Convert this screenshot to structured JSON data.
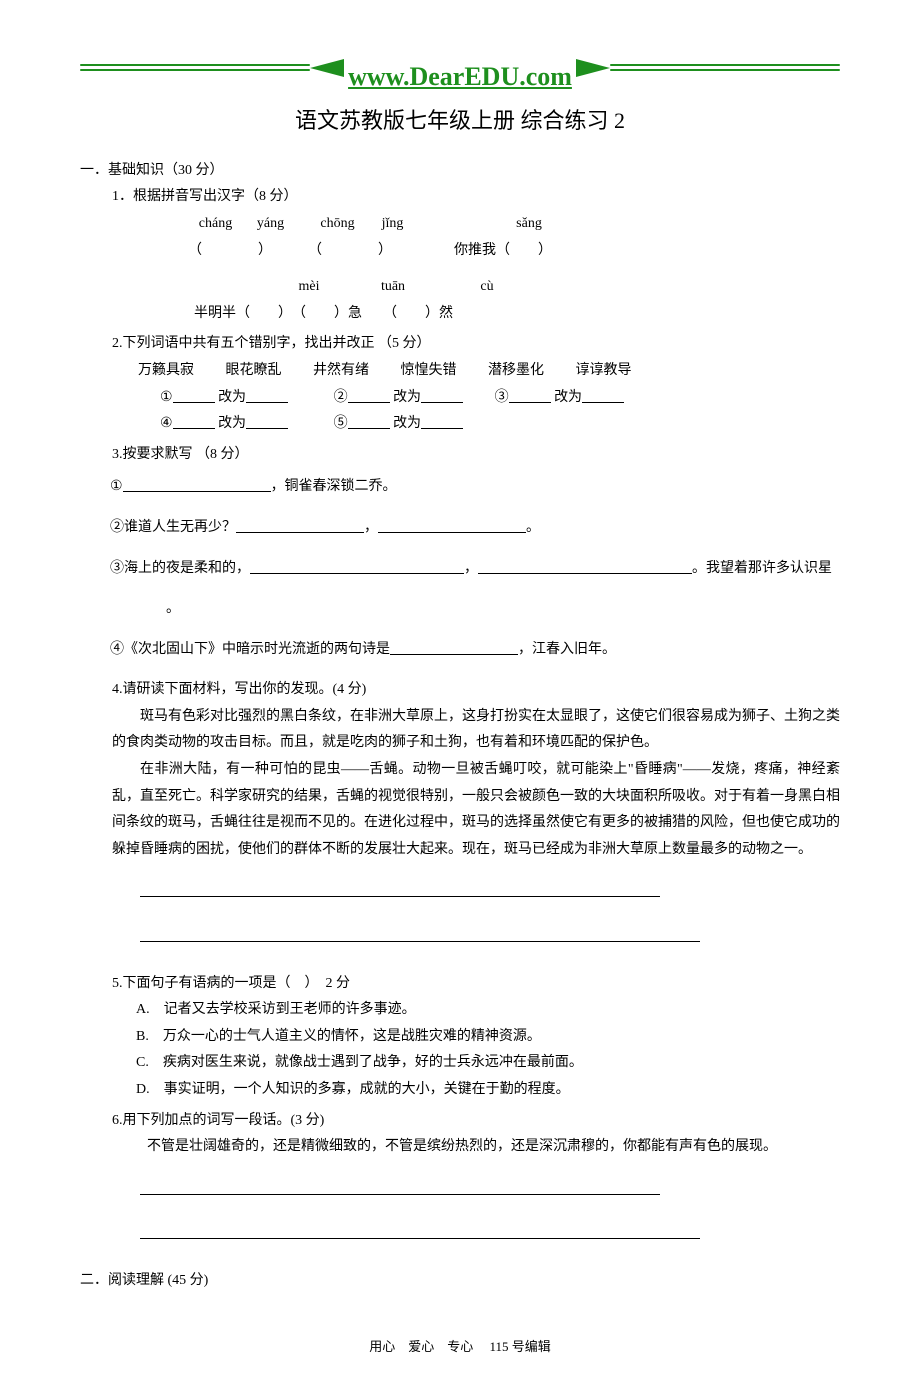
{
  "banner": {
    "url": "www.DearEDU.com"
  },
  "title": "语文苏教版七年级上册 综合练习 2",
  "sec1": {
    "label": "一．基础知识（30 分）",
    "q1": {
      "label": "1．根据拼音写出汉字（8 分）",
      "pinyin1a": "cháng",
      "pinyin1b": "yáng",
      "pinyin1c": "chōng",
      "pinyin1d": "jǐng",
      "pinyin1e": "sǎng",
      "line1a": "（",
      "line1b": "）",
      "line1c": "（",
      "line1d": "）",
      "line1e": "你推我（",
      "line1f": "）",
      "pinyin2a": "mèi",
      "pinyin2b": "tuān",
      "pinyin2c": "cù",
      "line2": "半明半（　　）　（　　）急　　（　　）然"
    },
    "q2": {
      "label": "2.下列词语中共有五个错别字，找出并改正 （5 分）",
      "idioms": "万籁具寂　 眼花瞭乱　 井然有绪　 惊惶失错　 潜移墨化　 谆谆教导",
      "corr1_n1": "①",
      "corr1_n2": "②",
      "corr1_n3": "③",
      "corr2_n4": "④",
      "corr2_n5": "⑤",
      "change": " 改为"
    },
    "q3": {
      "label": "3.按要求默写 （8 分）",
      "i1_before": "①",
      "i1_after": "，铜雀春深锁二乔。",
      "i2_before": "②谁道人生无再少？",
      "i2_mid": "，",
      "i2_end": "。",
      "i3_before": "③海上的夜是柔和的，",
      "i3_mid": "，",
      "i3_after": "。我望着那许多认识星",
      "i3_cont": "。",
      "i4_before": "④《次北固山下》中暗示时光流逝的两句诗是",
      "i4_after": "，江春入旧年。"
    },
    "q4": {
      "label": "4.请研读下面材料，写出你的发现。(4 分)",
      "p1": "斑马有色彩对比强烈的黑白条纹，在非洲大草原上，这身打扮实在太显眼了，这使它们很容易成为狮子、土狗之类的食肉类动物的攻击目标。而且，就是吃肉的狮子和土狗，也有着和环境匹配的保护色。",
      "p2": "在非洲大陆，有一种可怕的昆虫——舌蝇。动物一旦被舌蝇叮咬，就可能染上\"昏睡病\"——发烧，疼痛，神经紊乱，直至死亡。科学家研究的结果，舌蝇的视觉很特别，一般只会被颜色一致的大块面积所吸收。对于有着一身黑白相间条纹的斑马，舌蝇往往是视而不见的。在进化过程中，斑马的选择虽然使它有更多的被捕猎的风险，但也使它成功的躲掉昏睡病的困扰，使他们的群体不断的发展壮大起来。现在，斑马已经成为非洲大草原上数量最多的动物之一。"
    },
    "q5": {
      "label": "5.下面句子有语病的一项是（　）　2 分",
      "optA": "A.　记者又去学校采访到王老师的许多事迹。",
      "optB": "B.　万众一心的士气人道主义的情怀，这是战胜灾难的精神资源。",
      "optC": "C.　疾病对医生来说，就像战士遇到了战争，好的士兵永远冲在最前面。",
      "optD": "D.　事实证明，一个人知识的多寡，成就的大小，关键在于勤的程度。"
    },
    "q6": {
      "label": "6.用下列加点的词写一段话。(3 分)",
      "text": "不管是壮阔雄奇的，还是精微细致的，不管是缤纷热烈的，还是深沉肃穆的，你都能有声有色的展现。"
    }
  },
  "sec2": {
    "label": "二．阅读理解 (45 分)"
  },
  "footer": "用心　爱心　专心　 115 号编辑"
}
